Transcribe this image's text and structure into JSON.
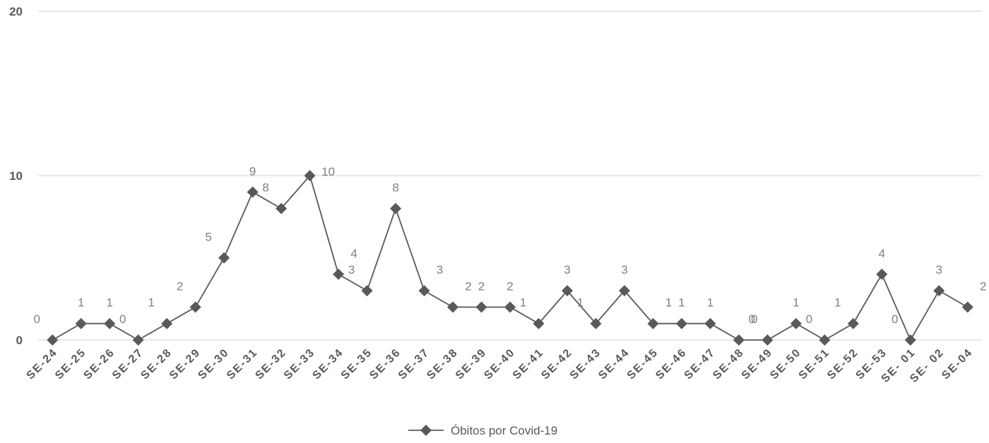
{
  "chart_data": {
    "type": "line",
    "categories": [
      "SE-24",
      "SE-25",
      "SE-26",
      "SE-27",
      "SE-28",
      "SE-29",
      "SE-30",
      "SE-31",
      "SE-32",
      "SE-33",
      "SE-34",
      "SE-35",
      "SE-36",
      "SE-37",
      "SE-38",
      "SE-39",
      "SE-40",
      "SE-41",
      "SE-42",
      "SE-43",
      "SE-44",
      "SE-45",
      "SE-46",
      "SE-47",
      "SE-48",
      "SE-49",
      "SE-50",
      "SE-51",
      "SE-52",
      "SE-53",
      "SE- 01",
      "SE- 02",
      "SE-04"
    ],
    "series": [
      {
        "name": "Óbitos por Covid-19",
        "values": [
          0,
          1,
          1,
          0,
          1,
          2,
          5,
          9,
          8,
          10,
          4,
          3,
          8,
          3,
          2,
          2,
          2,
          1,
          3,
          1,
          3,
          1,
          1,
          1,
          0,
          0,
          1,
          0,
          1,
          4,
          0,
          3,
          2
        ]
      }
    ],
    "ylim": [
      0,
      20
    ],
    "yticks": [
      0,
      10,
      20
    ],
    "grid": "horizontal",
    "legend": "bottom",
    "colors": {
      "line": "#595959",
      "marker": "#595959",
      "gridline": "#d9d9d9",
      "label": "#7f7f7f",
      "tick": "#595959"
    }
  }
}
